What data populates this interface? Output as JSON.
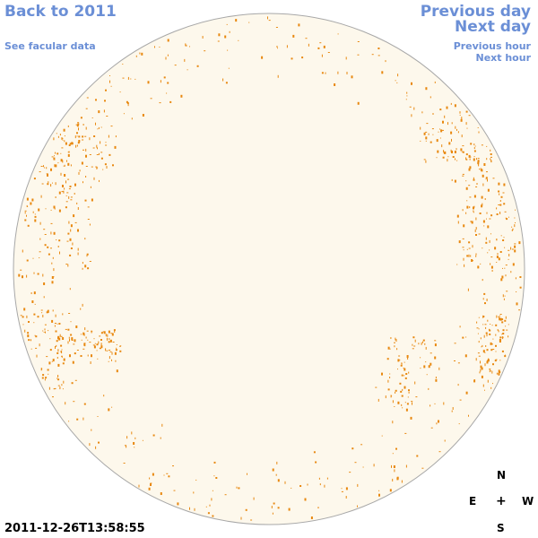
{
  "nav": {
    "back_year": "Back to 2011",
    "facular_link": "See facular data",
    "previous_day": "Previous day",
    "next_day": "Next day",
    "previous_hour": "Previous hour",
    "next_hour": "Next hour"
  },
  "compass": {
    "north": "N",
    "east": "E",
    "center": "+",
    "west": "W",
    "south": "S"
  },
  "timestamp": "2011-12-26T13:58:55",
  "colors": {
    "disk_fill": "#fdf8ec",
    "disk_outline": "#a8a8a8",
    "facula": "#e8880f",
    "link": "#6b8fd6"
  }
}
